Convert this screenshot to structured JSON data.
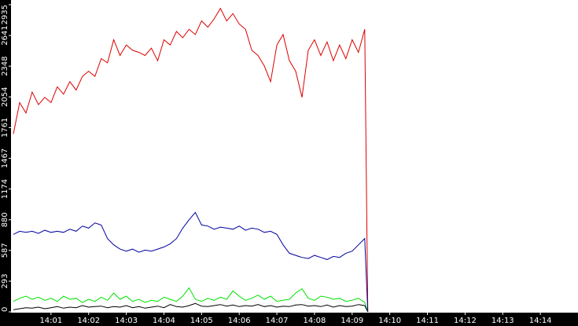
{
  "chart_data": {
    "type": "line",
    "x": [
      "14:00:00",
      "14:00:10",
      "14:00:20",
      "14:00:30",
      "14:00:40",
      "14:00:50",
      "14:01:00",
      "14:01:10",
      "14:01:20",
      "14:01:30",
      "14:01:40",
      "14:01:50",
      "14:02:00",
      "14:02:10",
      "14:02:20",
      "14:02:30",
      "14:02:40",
      "14:02:50",
      "14:03:00",
      "14:03:10",
      "14:03:20",
      "14:03:30",
      "14:03:40",
      "14:03:50",
      "14:04:00",
      "14:04:10",
      "14:04:20",
      "14:04:30",
      "14:04:40",
      "14:04:50",
      "14:05:00",
      "14:05:10",
      "14:05:20",
      "14:05:30",
      "14:05:40",
      "14:05:50",
      "14:06:00",
      "14:06:10",
      "14:06:20",
      "14:06:30",
      "14:06:40",
      "14:06:50",
      "14:07:00",
      "14:07:10",
      "14:07:20",
      "14:07:30",
      "14:07:40",
      "14:07:50",
      "14:08:00",
      "14:08:10",
      "14:08:20",
      "14:08:30",
      "14:08:40",
      "14:08:50",
      "14:09:00",
      "14:09:10",
      "14:09:20",
      "14:09:25"
    ],
    "series": [
      {
        "color": "#dd0000",
        "values": [
          1700,
          2000,
          1900,
          2100,
          1980,
          2050,
          2000,
          2150,
          2080,
          2200,
          2120,
          2250,
          2300,
          2250,
          2420,
          2380,
          2600,
          2450,
          2550,
          2500,
          2480,
          2450,
          2520,
          2400,
          2600,
          2550,
          2680,
          2620,
          2700,
          2650,
          2780,
          2720,
          2800,
          2900,
          2780,
          2850,
          2750,
          2700,
          2500,
          2450,
          2350,
          2200,
          2550,
          2650,
          2400,
          2300,
          2050,
          2500,
          2600,
          2450,
          2580,
          2400,
          2550,
          2420,
          2600,
          2480,
          2700,
          0
        ]
      },
      {
        "color": "#0000a0",
        "values": [
          740,
          770,
          760,
          770,
          750,
          780,
          760,
          770,
          760,
          790,
          770,
          820,
          800,
          850,
          830,
          700,
          640,
          600,
          580,
          600,
          570,
          590,
          580,
          600,
          620,
          650,
          700,
          800,
          880,
          950,
          830,
          820,
          790,
          810,
          800,
          790,
          820,
          780,
          800,
          790,
          760,
          770,
          740,
          640,
          560,
          540,
          520,
          510,
          540,
          520,
          500,
          530,
          520,
          560,
          580,
          640,
          700,
          0
        ]
      },
      {
        "color": "#00e000",
        "values": [
          100,
          130,
          150,
          120,
          140,
          110,
          130,
          100,
          150,
          120,
          130,
          90,
          120,
          100,
          140,
          110,
          180,
          120,
          150,
          100,
          120,
          90,
          110,
          100,
          140,
          120,
          100,
          150,
          230,
          120,
          100,
          130,
          110,
          140,
          120,
          200,
          150,
          110,
          130,
          160,
          120,
          150,
          100,
          110,
          120,
          180,
          220,
          130,
          110,
          150,
          140,
          120,
          130,
          100,
          110,
          130,
          90,
          0
        ]
      },
      {
        "color": "#000000",
        "values": [
          20,
          30,
          40,
          35,
          45,
          30,
          40,
          50,
          35,
          45,
          40,
          60,
          45,
          50,
          55,
          40,
          50,
          45,
          60,
          40,
          50,
          35,
          45,
          55,
          40,
          70,
          50,
          45,
          60,
          80,
          55,
          50,
          60,
          70,
          55,
          65,
          50,
          60,
          55,
          70,
          50,
          60,
          45,
          55,
          50,
          65,
          70,
          55,
          60,
          50,
          65,
          45,
          60,
          50,
          55,
          70,
          60,
          0
        ]
      }
    ],
    "xlim": [
      "14:00",
      "14:15"
    ],
    "xticks": [
      "14:01",
      "14:02",
      "14:03",
      "14:04",
      "14:05",
      "14:06",
      "14:07",
      "14:08",
      "14:09",
      "14:10",
      "14:11",
      "14:12",
      "14:13",
      "14:14"
    ],
    "ylim": [
      0,
      2935
    ],
    "yticks": [
      0,
      293,
      587,
      880,
      1174,
      1467,
      1761,
      2054,
      2348,
      2641,
      2935
    ]
  }
}
